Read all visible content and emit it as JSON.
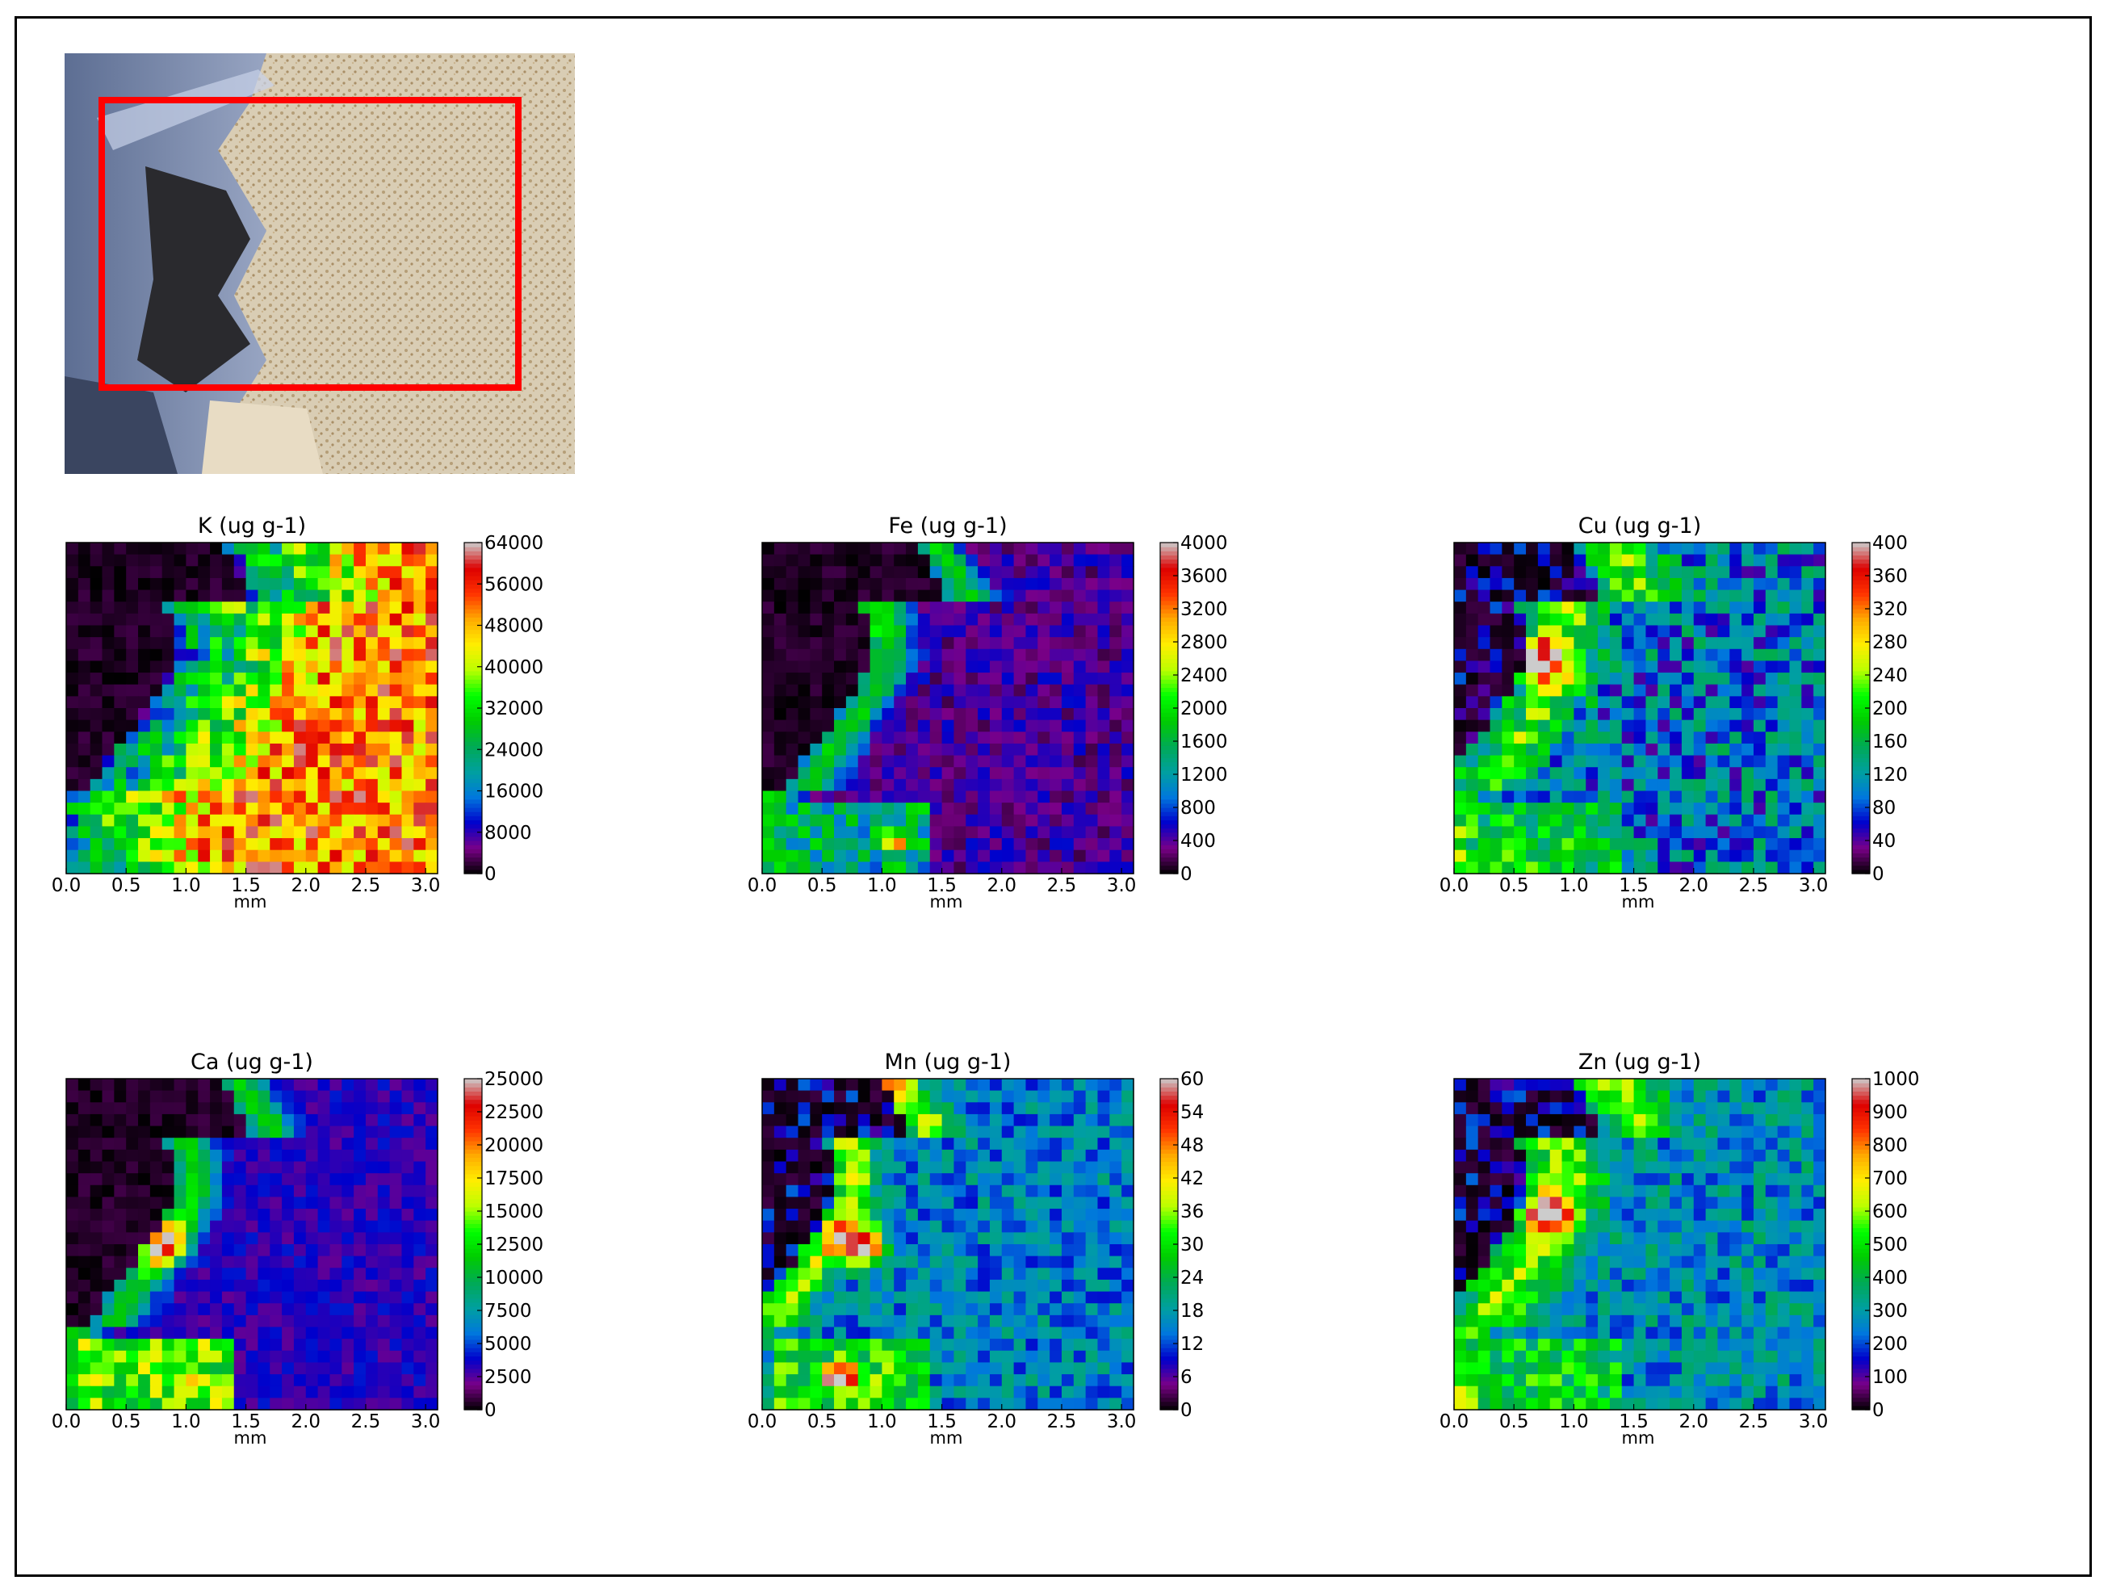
{
  "figure": {
    "photo_caption": "",
    "selection_box_color": "#ff0000"
  },
  "colormap": {
    "name": "nipy_spectral",
    "stops": [
      "#000000",
      "#7a0088",
      "#0000cc",
      "#0077dd",
      "#00a0a0",
      "#00aa55",
      "#00cc00",
      "#00ff00",
      "#bbff00",
      "#ffee00",
      "#ffaa00",
      "#ff3300",
      "#dd0000",
      "#cccccc"
    ]
  },
  "chart_data": [
    {
      "type": "heatmap",
      "element": "K",
      "title": "K (ug g-1)",
      "xlabel": "mm",
      "xlim": [
        0.0,
        3.1
      ],
      "xticks": [
        "0.0",
        "0.5",
        "1.0",
        "1.5",
        "2.0",
        "2.5",
        "3.0"
      ],
      "colorbar": {
        "vmin": 0,
        "vmax": 64000,
        "ticks": [
          "0",
          "8000",
          "16000",
          "24000",
          "32000",
          "40000",
          "48000",
          "56000",
          "64000"
        ]
      },
      "grid": [
        31,
        28
      ],
      "pattern": {
        "dark_region": "left",
        "high_region": "right",
        "base_level": 0.62,
        "noise": 0.35,
        "lower_left_feature": 0.25,
        "hotspots": []
      }
    },
    {
      "type": "heatmap",
      "element": "Fe",
      "title": "Fe (ug g-1)",
      "xlabel": "mm",
      "xlim": [
        0.0,
        3.1
      ],
      "xticks": [
        "0.0",
        "0.5",
        "1.0",
        "1.5",
        "2.0",
        "2.5",
        "3.0"
      ],
      "colorbar": {
        "vmin": 0,
        "vmax": 4000,
        "ticks": [
          "0",
          "400",
          "800",
          "1200",
          "1600",
          "2000",
          "2400",
          "2800",
          "3200",
          "3600",
          "4000"
        ]
      },
      "grid": [
        31,
        28
      ],
      "pattern": {
        "dark_region": "left",
        "high_region": "edge",
        "base_level": 0.1,
        "noise": 0.12,
        "lower_left_feature": 0.35,
        "hotspots": [
          [
            0.3,
            0.05,
            0.9
          ],
          [
            0.22,
            0.25,
            0.8
          ],
          [
            0.35,
            0.92,
            0.7
          ]
        ]
      }
    },
    {
      "type": "heatmap",
      "element": "Cu",
      "title": "Cu (ug g-1)",
      "xlabel": "mm",
      "xlim": [
        0.0,
        3.1
      ],
      "xticks": [
        "0.0",
        "0.5",
        "1.0",
        "1.5",
        "2.0",
        "2.5",
        "3.0"
      ],
      "colorbar": {
        "vmin": 0,
        "vmax": 400,
        "ticks": [
          "0",
          "40",
          "80",
          "120",
          "160",
          "200",
          "240",
          "280",
          "320",
          "360",
          "400"
        ]
      },
      "grid": [
        31,
        28
      ],
      "pattern": {
        "dark_region": "left-thin",
        "high_region": "band",
        "base_level": 0.25,
        "noise": 0.3,
        "lower_left_feature": 0.45,
        "hotspots": [
          [
            0.22,
            0.35,
            0.8
          ]
        ]
      }
    },
    {
      "type": "heatmap",
      "element": "Ca",
      "title": "Ca (ug g-1)",
      "xlabel": "mm",
      "xlim": [
        0.0,
        3.1
      ],
      "xticks": [
        "0.0",
        "0.5",
        "1.0",
        "1.5",
        "2.0",
        "2.5",
        "3.0"
      ],
      "colorbar": {
        "vmin": 0,
        "vmax": 25000,
        "ticks": [
          "0",
          "2500",
          "5000",
          "7500",
          "10000",
          "12500",
          "15000",
          "17500",
          "20000",
          "22500",
          "25000"
        ]
      },
      "grid": [
        31,
        28
      ],
      "pattern": {
        "dark_region": "left",
        "high_region": "edge",
        "base_level": 0.13,
        "noise": 0.08,
        "lower_left_feature": 0.55,
        "hotspots": [
          [
            0.25,
            0.5,
            0.7
          ],
          [
            0.33,
            0.95,
            0.75
          ]
        ]
      }
    },
    {
      "type": "heatmap",
      "element": "Mn",
      "title": "Mn (ug g-1)",
      "xlabel": "mm",
      "xlim": [
        0.0,
        3.1
      ],
      "xticks": [
        "0.0",
        "0.5",
        "1.0",
        "1.5",
        "2.0",
        "2.5",
        "3.0"
      ],
      "colorbar": {
        "vmin": 0,
        "vmax": 60,
        "ticks": [
          "0",
          "6",
          "12",
          "18",
          "24",
          "30",
          "36",
          "42",
          "48",
          "54",
          "60"
        ]
      },
      "grid": [
        31,
        28
      ],
      "pattern": {
        "dark_region": "left-thin",
        "high_region": "edge",
        "base_level": 0.26,
        "noise": 0.2,
        "lower_left_feature": 0.5,
        "hotspots": [
          [
            0.3,
            0.05,
            0.9
          ],
          [
            0.25,
            0.5,
            0.95
          ],
          [
            0.2,
            0.92,
            0.85
          ]
        ]
      }
    },
    {
      "type": "heatmap",
      "element": "Zn",
      "title": "Zn (ug g-1)",
      "xlabel": "mm",
      "xlim": [
        0.0,
        3.1
      ],
      "xticks": [
        "0.0",
        "0.5",
        "1.0",
        "1.5",
        "2.0",
        "2.5",
        "3.0"
      ],
      "colorbar": {
        "vmin": 0,
        "vmax": 1000,
        "ticks": [
          "0",
          "100",
          "200",
          "300",
          "400",
          "500",
          "600",
          "700",
          "800",
          "900",
          "1000"
        ]
      },
      "grid": [
        31,
        28
      ],
      "pattern": {
        "dark_region": "left-thin",
        "high_region": "band",
        "base_level": 0.28,
        "noise": 0.22,
        "lower_left_feature": 0.45,
        "hotspots": [
          [
            0.24,
            0.4,
            0.75
          ]
        ]
      }
    }
  ]
}
